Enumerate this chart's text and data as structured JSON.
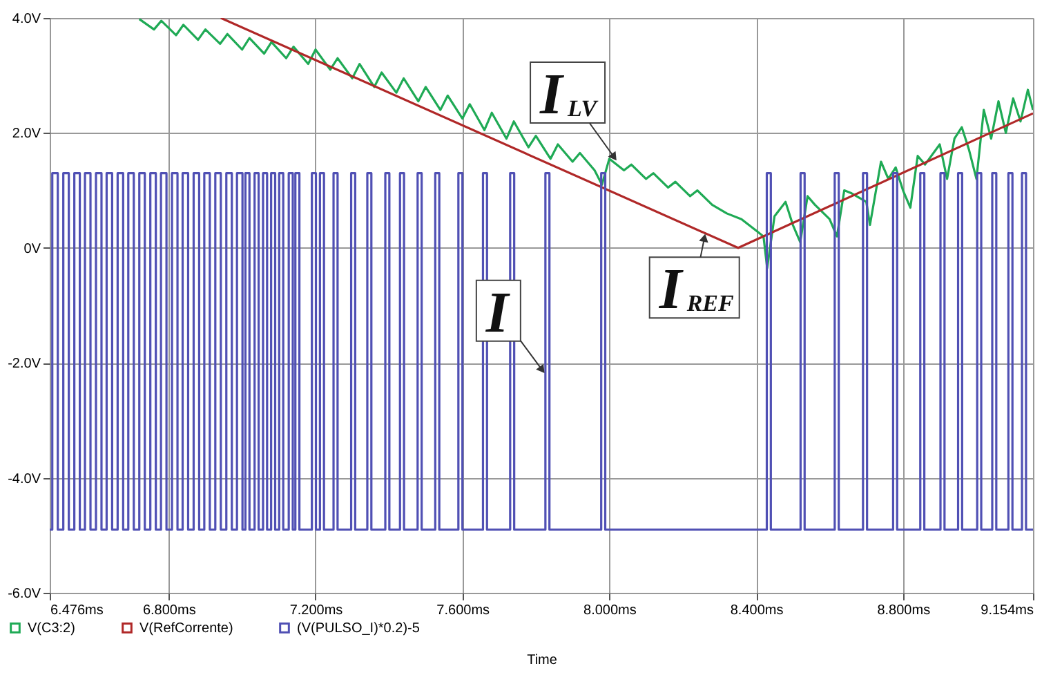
{
  "chart_data": {
    "type": "line",
    "xlabel": "Time",
    "xlim": [
      6.476,
      9.154
    ],
    "ylim": [
      -6,
      4
    ],
    "xticks": [
      {
        "value": 6.476,
        "label": "6.476ms"
      },
      {
        "value": 6.8,
        "label": "6.800ms"
      },
      {
        "value": 7.2,
        "label": "7.200ms"
      },
      {
        "value": 7.6,
        "label": "7.600ms"
      },
      {
        "value": 8.0,
        "label": "8.000ms"
      },
      {
        "value": 8.4,
        "label": "8.400ms"
      },
      {
        "value": 8.8,
        "label": "8.800ms"
      },
      {
        "value": 9.154,
        "label": "9.154ms"
      }
    ],
    "yticks": [
      {
        "value": -6,
        "label": "-6.0V"
      },
      {
        "value": -4,
        "label": "-4.0V"
      },
      {
        "value": -2,
        "label": "-2.0V"
      },
      {
        "value": 0,
        "label": "0V"
      },
      {
        "value": 2,
        "label": "2.0V"
      },
      {
        "value": 4,
        "label": "4.0V"
      }
    ],
    "grid": true,
    "legend": "bottom",
    "series": [
      {
        "name": "V(C3:2)",
        "color": "#1faa55",
        "x": [
          6.72,
          6.76,
          6.78,
          6.82,
          6.84,
          6.88,
          6.9,
          6.94,
          6.96,
          7.0,
          7.02,
          7.06,
          7.08,
          7.12,
          7.14,
          7.18,
          7.2,
          7.24,
          7.26,
          7.3,
          7.32,
          7.36,
          7.38,
          7.42,
          7.44,
          7.48,
          7.5,
          7.54,
          7.56,
          7.6,
          7.62,
          7.66,
          7.68,
          7.72,
          7.74,
          7.78,
          7.8,
          7.84,
          7.86,
          7.9,
          7.92,
          7.96,
          7.98,
          8.0,
          8.04,
          8.06,
          8.1,
          8.12,
          8.16,
          8.18,
          8.22,
          8.24,
          8.28,
          8.32,
          8.36,
          8.4,
          8.42,
          8.43,
          8.45,
          8.48,
          8.5,
          8.52,
          8.54,
          8.56,
          8.6,
          8.62,
          8.64,
          8.66,
          8.7,
          8.71,
          8.74,
          8.76,
          8.78,
          8.8,
          8.82,
          8.84,
          8.86,
          8.9,
          8.92,
          8.94,
          8.96,
          8.98,
          9.0,
          9.02,
          9.04,
          9.06,
          9.08,
          9.1,
          9.12,
          9.14,
          9.154
        ],
        "values": [
          3.98,
          3.8,
          3.95,
          3.7,
          3.88,
          3.62,
          3.8,
          3.55,
          3.72,
          3.45,
          3.65,
          3.38,
          3.58,
          3.3,
          3.5,
          3.2,
          3.45,
          3.1,
          3.3,
          2.95,
          3.2,
          2.8,
          3.05,
          2.7,
          2.95,
          2.55,
          2.8,
          2.4,
          2.65,
          2.25,
          2.5,
          2.05,
          2.35,
          1.9,
          2.2,
          1.75,
          1.95,
          1.55,
          1.8,
          1.5,
          1.65,
          1.35,
          1.1,
          1.55,
          1.35,
          1.45,
          1.2,
          1.3,
          1.05,
          1.15,
          0.9,
          1.0,
          0.75,
          0.6,
          0.5,
          0.3,
          0.2,
          -0.35,
          0.55,
          0.8,
          0.4,
          0.1,
          0.9,
          0.75,
          0.5,
          0.2,
          1.0,
          0.95,
          0.8,
          0.4,
          1.5,
          1.2,
          1.4,
          1.0,
          0.7,
          1.6,
          1.45,
          1.8,
          1.2,
          1.9,
          2.1,
          1.7,
          1.2,
          2.4,
          1.9,
          2.55,
          2.0,
          2.6,
          2.2,
          2.75,
          2.4
        ]
      },
      {
        "name": "V(RefCorrente)",
        "color": "#b02828",
        "x": [
          6.942,
          8.351,
          9.154
        ],
        "values": [
          4.0,
          0.0,
          2.34
        ]
      },
      {
        "name": "(V(PULSO_I)*0.2)-5",
        "color": "#5050b4",
        "type": "step",
        "x": [
          6.476,
          6.483,
          6.498,
          6.513,
          6.528,
          6.543,
          6.558,
          6.572,
          6.587,
          6.602,
          6.617,
          6.631,
          6.646,
          6.661,
          6.676,
          6.69,
          6.705,
          6.72,
          6.735,
          6.75,
          6.765,
          6.779,
          6.794,
          6.809,
          6.824,
          6.838,
          6.853,
          6.868,
          6.883,
          6.897,
          6.912,
          6.927,
          6.942,
          6.957,
          6.972,
          6.986,
          7.001,
          7.009,
          7.02,
          7.034,
          7.045,
          7.057,
          7.068,
          7.079,
          7.09,
          7.101,
          7.112,
          7.127,
          7.138,
          7.145,
          7.156,
          7.19,
          7.201,
          7.212,
          7.223,
          7.249,
          7.26,
          7.297,
          7.308,
          7.341,
          7.352,
          7.39,
          7.401,
          7.43,
          7.441,
          7.478,
          7.489,
          7.526,
          7.537,
          7.589,
          7.6,
          7.656,
          7.667,
          7.73,
          7.741,
          7.826,
          7.837,
          7.978,
          7.989,
          8.429,
          8.44,
          8.521,
          8.532,
          8.614,
          8.625,
          8.691,
          8.702,
          8.773,
          8.784,
          8.847,
          8.858,
          8.902,
          8.913,
          8.95,
          8.961,
          9.002,
          9.013,
          9.043,
          9.054,
          9.087,
          9.098,
          9.124,
          9.135,
          9.154
        ],
        "values": [
          -4.9,
          1.3,
          -4.9,
          1.3,
          -4.9,
          1.3,
          -4.9,
          1.3,
          -4.9,
          1.3,
          -4.9,
          1.3,
          -4.9,
          1.3,
          -4.9,
          1.3,
          -4.9,
          1.3,
          -4.9,
          1.3,
          -4.9,
          1.3,
          -4.9,
          1.3,
          -4.9,
          1.3,
          -4.9,
          1.3,
          -4.9,
          1.3,
          -4.9,
          1.3,
          -4.9,
          1.3,
          -4.9,
          1.3,
          -4.9,
          1.3,
          -4.9,
          1.3,
          -4.9,
          1.3,
          -4.9,
          1.3,
          -4.9,
          1.3,
          -4.9,
          1.3,
          -4.9,
          1.3,
          -4.9,
          1.3,
          -4.9,
          1.3,
          -4.9,
          1.3,
          -4.9,
          1.3,
          -4.9,
          1.3,
          -4.9,
          1.3,
          -4.9,
          1.3,
          -4.9,
          1.3,
          -4.9,
          1.3,
          -4.9,
          1.3,
          -4.9,
          1.3,
          -4.9,
          1.3,
          -4.9,
          1.3,
          -4.9,
          1.3,
          -4.9,
          1.3,
          -4.9,
          1.3,
          -4.9,
          1.3,
          -4.9,
          1.3,
          -4.9,
          1.3,
          -4.9,
          1.3,
          -4.9,
          1.3,
          -4.9,
          1.3,
          -4.9,
          1.3,
          -4.9,
          1.3,
          -4.9,
          1.3,
          -4.9,
          1.3,
          -4.9,
          -4.9
        ]
      }
    ],
    "annotations": [
      {
        "text": "I$_{LV}$",
        "x": 8.022,
        "y": 1.5
      },
      {
        "text": "I$_{REF}$",
        "x": 8.262,
        "y": 0.27
      },
      {
        "text": "I",
        "x": 7.826,
        "y": -2.2
      }
    ]
  }
}
